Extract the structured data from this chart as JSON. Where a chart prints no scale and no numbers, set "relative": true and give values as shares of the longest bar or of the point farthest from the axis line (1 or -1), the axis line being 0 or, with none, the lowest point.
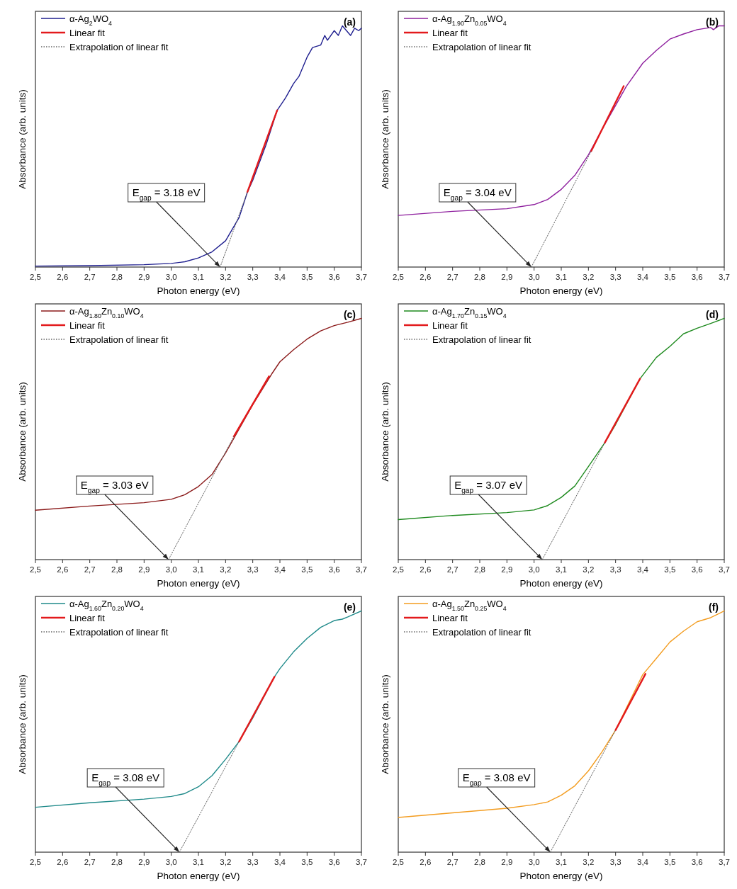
{
  "chart_data": [
    {
      "type": "line",
      "title": "(a)",
      "xlabel": "Photon energy (eV)",
      "ylabel": "Absorbance (arb. units)",
      "relative": true,
      "legend": "top left",
      "xlim": [
        2.5,
        3.7
      ],
      "xticks": [
        {
          "value": 2.5,
          "label": "2,5"
        },
        {
          "value": 2.6,
          "label": "2,6"
        },
        {
          "value": 2.7,
          "label": "2,7"
        },
        {
          "value": 2.8,
          "label": "2,8"
        },
        {
          "value": 2.9,
          "label": "2,9"
        },
        {
          "value": 3.0,
          "label": "3,0"
        },
        {
          "value": 3.1,
          "label": "3,1"
        },
        {
          "value": 3.2,
          "label": "3,2"
        },
        {
          "value": 3.3,
          "label": "3,3"
        },
        {
          "value": 3.4,
          "label": "3,4"
        },
        {
          "value": 3.5,
          "label": "3,5"
        },
        {
          "value": 3.6,
          "label": "3,6"
        },
        {
          "value": 3.7,
          "label": "3,7"
        }
      ],
      "series": [
        {
          "name": "α-Ag$_{2}$WO$_{4}$",
          "color": "#1f1f8f",
          "x": [
            2.5,
            2.7,
            2.9,
            3.0,
            3.05,
            3.1,
            3.15,
            3.2,
            3.25,
            3.28,
            3.3,
            3.35,
            3.39,
            3.42,
            3.45,
            3.47,
            3.5,
            3.52,
            3.55,
            3.565,
            3.575,
            3.6,
            3.615,
            3.63,
            3.66,
            3.675,
            3.69,
            3.7
          ],
          "values": [
            0.004,
            0.006,
            0.01,
            0.015,
            0.022,
            0.038,
            0.063,
            0.109,
            0.206,
            0.31,
            0.36,
            0.51,
            0.65,
            0.7,
            0.76,
            0.79,
            0.87,
            0.91,
            0.92,
            0.96,
            0.94,
            0.98,
            0.96,
            1.0,
            0.96,
            0.99,
            0.98,
            0.99
          ]
        },
        {
          "name": "Linear fit",
          "color": "#e31a1c",
          "x": [
            3.28,
            3.39
          ],
          "values": [
            0.31,
            0.65
          ]
        },
        {
          "name": "Extrapolation of linear fit",
          "color": "#666666",
          "line_style": "dotted",
          "x": [
            3.18,
            3.28
          ],
          "values": [
            0,
            0.31
          ]
        }
      ],
      "annotations": [
        {
          "text": "E$_{gap}$ = 3.18 eV",
          "x": 3.18,
          "y": 0
        }
      ]
    },
    {
      "type": "line",
      "title": "(b)",
      "xlabel": "Photon energy (eV)",
      "ylabel": "Absorbance (arb. units)",
      "relative": true,
      "legend": "top left",
      "xlim": [
        2.5,
        3.7
      ],
      "xticks": [
        {
          "value": 2.5,
          "label": "2,5"
        },
        {
          "value": 2.6,
          "label": "2,6"
        },
        {
          "value": 2.7,
          "label": "2,7"
        },
        {
          "value": 2.8,
          "label": "2,8"
        },
        {
          "value": 2.9,
          "label": "2,9"
        },
        {
          "value": 3.0,
          "label": "3,0"
        },
        {
          "value": 3.1,
          "label": "3,1"
        },
        {
          "value": 3.2,
          "label": "3,2"
        },
        {
          "value": 3.3,
          "label": "3,3"
        },
        {
          "value": 3.4,
          "label": "3,4"
        },
        {
          "value": 3.5,
          "label": "3,5"
        },
        {
          "value": 3.6,
          "label": "3,6"
        },
        {
          "value": 3.7,
          "label": "3,7"
        }
      ],
      "series": [
        {
          "name": "α-Ag$_{1.90}$Zn$_{0.05}$WO$_{4}$",
          "color": "#8e1f9e",
          "x": [
            2.5,
            2.7,
            2.9,
            3.0,
            3.05,
            3.1,
            3.15,
            3.2,
            3.25,
            3.3,
            3.34,
            3.4,
            3.45,
            3.5,
            3.55,
            3.6,
            3.65,
            3.66,
            3.68,
            3.7
          ],
          "values": [
            0.214,
            0.231,
            0.242,
            0.259,
            0.28,
            0.322,
            0.38,
            0.465,
            0.57,
            0.67,
            0.75,
            0.845,
            0.898,
            0.945,
            0.966,
            0.984,
            0.993,
            0.984,
            1.0,
            1.0
          ]
        },
        {
          "name": "Linear fit",
          "color": "#e31a1c",
          "x": [
            3.21,
            3.33
          ],
          "values": [
            0.48,
            0.75
          ]
        },
        {
          "name": "Extrapolation of linear fit",
          "color": "#666666",
          "line_style": "dotted",
          "x": [
            2.99,
            3.21
          ],
          "values": [
            0,
            0.48
          ]
        }
      ],
      "annotations": [
        {
          "text": "E$_{gap}$ = 3.04 eV",
          "x": 2.99,
          "y": 0
        }
      ]
    },
    {
      "type": "line",
      "title": "(c)",
      "xlabel": "Photon energy (eV)",
      "ylabel": "Absorbance (arb. units)",
      "relative": true,
      "legend": "top left",
      "xlim": [
        2.5,
        3.7
      ],
      "xticks": [
        {
          "value": 2.5,
          "label": "2,5"
        },
        {
          "value": 2.6,
          "label": "2,6"
        },
        {
          "value": 2.7,
          "label": "2,7"
        },
        {
          "value": 2.8,
          "label": "2,8"
        },
        {
          "value": 2.9,
          "label": "2,9"
        },
        {
          "value": 3.0,
          "label": "3,0"
        },
        {
          "value": 3.1,
          "label": "3,1"
        },
        {
          "value": 3.2,
          "label": "3,2"
        },
        {
          "value": 3.3,
          "label": "3,3"
        },
        {
          "value": 3.4,
          "label": "3,4"
        },
        {
          "value": 3.5,
          "label": "3,5"
        },
        {
          "value": 3.6,
          "label": "3,6"
        },
        {
          "value": 3.7,
          "label": "3,7"
        }
      ],
      "series": [
        {
          "name": "α-Ag$_{1.80}$Zn$_{0.10}$WO$_{4}$",
          "color": "#8b1a1a",
          "x": [
            2.5,
            2.7,
            2.9,
            3.0,
            3.05,
            3.1,
            3.15,
            3.2,
            3.25,
            3.3,
            3.37,
            3.4,
            3.45,
            3.5,
            3.55,
            3.6,
            3.65,
            3.7
          ],
          "values": [
            0.205,
            0.222,
            0.236,
            0.25,
            0.269,
            0.303,
            0.353,
            0.442,
            0.542,
            0.642,
            0.77,
            0.82,
            0.87,
            0.914,
            0.948,
            0.97,
            0.984,
            1.0
          ]
        },
        {
          "name": "Linear fit",
          "color": "#e31a1c",
          "x": [
            3.23,
            3.36
          ],
          "values": [
            0.51,
            0.76
          ]
        },
        {
          "name": "Extrapolation of linear fit",
          "color": "#666666",
          "line_style": "dotted",
          "x": [
            2.99,
            3.23
          ],
          "values": [
            0,
            0.51
          ]
        }
      ],
      "annotations": [
        {
          "text": "E$_{gap}$ = 3.03 eV",
          "x": 2.99,
          "y": 0
        }
      ]
    },
    {
      "type": "line",
      "title": "(d)",
      "xlabel": "Photon energy (eV)",
      "ylabel": "Absorbance (arb. units)",
      "relative": true,
      "legend": "top left",
      "xlim": [
        2.5,
        3.7
      ],
      "xticks": [
        {
          "value": 2.5,
          "label": "2,5"
        },
        {
          "value": 2.6,
          "label": "2,6"
        },
        {
          "value": 2.7,
          "label": "2,7"
        },
        {
          "value": 2.8,
          "label": "2,8"
        },
        {
          "value": 2.9,
          "label": "2,9"
        },
        {
          "value": 3.0,
          "label": "3,0"
        },
        {
          "value": 3.1,
          "label": "3,1"
        },
        {
          "value": 3.2,
          "label": "3,2"
        },
        {
          "value": 3.3,
          "label": "3,3"
        },
        {
          "value": 3.4,
          "label": "3,4"
        },
        {
          "value": 3.5,
          "label": "3,5"
        },
        {
          "value": 3.6,
          "label": "3,6"
        },
        {
          "value": 3.7,
          "label": "3,7"
        }
      ],
      "series": [
        {
          "name": "α-Ag$_{1.70}$Zn$_{0.15}$WO$_{4}$",
          "color": "#1e8a1e",
          "x": [
            2.5,
            2.7,
            2.9,
            3.0,
            3.05,
            3.1,
            3.15,
            3.2,
            3.26,
            3.3,
            3.39,
            3.45,
            3.5,
            3.55,
            3.6,
            3.65,
            3.7
          ],
          "values": [
            0.166,
            0.183,
            0.195,
            0.206,
            0.224,
            0.258,
            0.305,
            0.386,
            0.484,
            0.56,
            0.75,
            0.838,
            0.884,
            0.936,
            0.959,
            0.979,
            1.0
          ]
        },
        {
          "name": "Linear fit",
          "color": "#e31a1c",
          "x": [
            3.26,
            3.39
          ],
          "values": [
            0.484,
            0.75
          ]
        },
        {
          "name": "Extrapolation of linear fit",
          "color": "#666666",
          "line_style": "dotted",
          "x": [
            3.03,
            3.26
          ],
          "values": [
            0,
            0.484
          ]
        }
      ],
      "annotations": [
        {
          "text": "E$_{gap}$ = 3.07 eV",
          "x": 3.03,
          "y": 0
        }
      ]
    },
    {
      "type": "line",
      "title": "(e)",
      "xlabel": "Photon energy (eV)",
      "ylabel": "Absorbance (arb. units)",
      "relative": true,
      "legend": "top left",
      "xlim": [
        2.5,
        3.7
      ],
      "xticks": [
        {
          "value": 2.5,
          "label": "2,5"
        },
        {
          "value": 2.6,
          "label": "2,6"
        },
        {
          "value": 2.7,
          "label": "2,7"
        },
        {
          "value": 2.8,
          "label": "2,8"
        },
        {
          "value": 2.9,
          "label": "2,9"
        },
        {
          "value": 3.0,
          "label": "3,0"
        },
        {
          "value": 3.1,
          "label": "3,1"
        },
        {
          "value": 3.2,
          "label": "3,2"
        },
        {
          "value": 3.3,
          "label": "3,3"
        },
        {
          "value": 3.4,
          "label": "3,4"
        },
        {
          "value": 3.5,
          "label": "3,5"
        },
        {
          "value": 3.6,
          "label": "3,6"
        },
        {
          "value": 3.7,
          "label": "3,7"
        }
      ],
      "series": [
        {
          "name": "α-Ag$_{1.60}$Zn$_{0.20}$WO$_{4}$",
          "color": "#1f8a8a",
          "x": [
            2.5,
            2.7,
            2.9,
            3.0,
            3.05,
            3.1,
            3.15,
            3.2,
            3.25,
            3.3,
            3.38,
            3.4,
            3.45,
            3.5,
            3.55,
            3.6,
            3.63,
            3.65,
            3.7
          ],
          "values": [
            0.186,
            0.205,
            0.22,
            0.231,
            0.243,
            0.271,
            0.317,
            0.385,
            0.459,
            0.556,
            0.727,
            0.761,
            0.83,
            0.886,
            0.932,
            0.96,
            0.966,
            0.975,
            1.0
          ]
        },
        {
          "name": "Linear fit",
          "color": "#e31a1c",
          "x": [
            3.25,
            3.38
          ],
          "values": [
            0.459,
            0.727
          ]
        },
        {
          "name": "Extrapolation of linear fit",
          "color": "#666666",
          "line_style": "dotted",
          "x": [
            3.03,
            3.25
          ],
          "values": [
            0,
            0.459
          ]
        }
      ],
      "annotations": [
        {
          "text": "E$_{gap}$ = 3.08 eV",
          "x": 3.03,
          "y": 0
        }
      ]
    },
    {
      "type": "line",
      "title": "(f)",
      "xlabel": "Photon energy (eV)",
      "ylabel": "Absorbance (arb. units)",
      "relative": true,
      "legend": "top left",
      "xlim": [
        2.5,
        3.7
      ],
      "xticks": [
        {
          "value": 2.5,
          "label": "2,5"
        },
        {
          "value": 2.6,
          "label": "2,6"
        },
        {
          "value": 2.7,
          "label": "2,7"
        },
        {
          "value": 2.8,
          "label": "2,8"
        },
        {
          "value": 2.9,
          "label": "2,9"
        },
        {
          "value": 3.0,
          "label": "3,0"
        },
        {
          "value": 3.1,
          "label": "3,1"
        },
        {
          "value": 3.2,
          "label": "3,2"
        },
        {
          "value": 3.3,
          "label": "3,3"
        },
        {
          "value": 3.4,
          "label": "3,4"
        },
        {
          "value": 3.5,
          "label": "3,5"
        },
        {
          "value": 3.6,
          "label": "3,6"
        },
        {
          "value": 3.7,
          "label": "3,7"
        }
      ],
      "series": [
        {
          "name": "α-Ag$_{1.50}$Zn$_{0.25}$WO$_{4}$",
          "color": "#f39c1f",
          "x": [
            2.5,
            2.7,
            2.9,
            3.0,
            3.05,
            3.1,
            3.15,
            3.2,
            3.25,
            3.3,
            3.4,
            3.45,
            3.5,
            3.55,
            3.6,
            3.65,
            3.7
          ],
          "values": [
            0.144,
            0.163,
            0.182,
            0.197,
            0.208,
            0.236,
            0.275,
            0.337,
            0.416,
            0.506,
            0.736,
            0.803,
            0.871,
            0.916,
            0.955,
            0.972,
            1.0
          ]
        },
        {
          "name": "Linear fit",
          "color": "#e31a1c",
          "x": [
            3.3,
            3.41
          ],
          "values": [
            0.506,
            0.739
          ]
        },
        {
          "name": "Extrapolation of linear fit",
          "color": "#666666",
          "line_style": "dotted",
          "x": [
            3.06,
            3.3
          ],
          "values": [
            0,
            0.506
          ]
        }
      ],
      "annotations": [
        {
          "text": "E$_{gap}$ = 3.08 eV",
          "x": 3.06,
          "y": 0
        }
      ]
    }
  ]
}
